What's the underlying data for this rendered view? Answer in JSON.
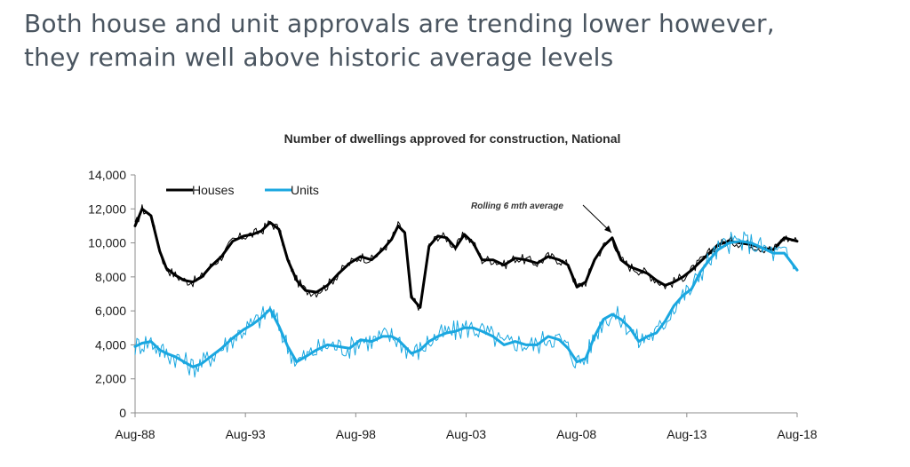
{
  "slide": {
    "title_line1": "Both house and unit approvals are trending lower however,",
    "title_line2": "they remain well above historic average levels"
  },
  "chart_data": {
    "type": "line",
    "title": "Number of dwellings approved for construction, National",
    "xlabel": "",
    "ylabel": "",
    "ylim": [
      0,
      14000
    ],
    "y_ticks": [
      "0",
      "2,000",
      "4,000",
      "6,000",
      "8,000",
      "10,000",
      "12,000",
      "14,000"
    ],
    "y_tick_values": [
      0,
      2000,
      4000,
      6000,
      8000,
      10000,
      12000,
      14000
    ],
    "x_range": [
      1988.58,
      2018.58
    ],
    "x_ticks": [
      "Aug-88",
      "Aug-93",
      "Aug-98",
      "Aug-03",
      "Aug-08",
      "Aug-13",
      "Aug-18"
    ],
    "x_tick_values": [
      1988.58,
      1993.58,
      1998.58,
      2003.58,
      2008.58,
      2013.58,
      2018.58
    ],
    "legend": [
      "Houses",
      "Units"
    ],
    "legend_position": "top-left",
    "annotation": "Rolling 6 mth average",
    "colors": {
      "houses": "#000000",
      "units": "#1aa7e0"
    },
    "series": [
      {
        "name": "Houses",
        "x": [
          1988.58,
          1988.9,
          1989.3,
          1989.7,
          1990.0,
          1990.4,
          1990.8,
          1991.2,
          1991.6,
          1992.0,
          1992.5,
          1993.0,
          1993.5,
          1993.9,
          1994.3,
          1994.7,
          1995.1,
          1995.5,
          1995.9,
          1996.3,
          1996.8,
          1997.3,
          1997.8,
          1998.3,
          1998.8,
          1999.3,
          1999.8,
          2000.2,
          2000.5,
          2000.8,
          2001.1,
          2001.5,
          2001.9,
          2002.3,
          2002.7,
          2003.1,
          2003.5,
          2003.9,
          2004.3,
          2004.8,
          2005.3,
          2005.8,
          2006.3,
          2006.8,
          2007.3,
          2007.8,
          2008.2,
          2008.6,
          2009.0,
          2009.4,
          2009.8,
          2010.2,
          2010.6,
          2011.0,
          2011.4,
          2011.8,
          2012.2,
          2012.6,
          2013.0,
          2013.4,
          2013.8,
          2014.2,
          2014.6,
          2015.0,
          2015.5,
          2016.0,
          2016.5,
          2017.0,
          2017.5,
          2018.0,
          2018.58
        ],
        "values": [
          11000,
          12000,
          11600,
          9500,
          8500,
          8100,
          7800,
          7700,
          8000,
          8600,
          9200,
          10100,
          10400,
          10500,
          10700,
          11200,
          10800,
          9000,
          7800,
          7200,
          7100,
          7500,
          8200,
          8800,
          9200,
          9000,
          9600,
          10200,
          11000,
          10600,
          6800,
          6200,
          9800,
          10400,
          10300,
          9700,
          10500,
          10000,
          9000,
          9000,
          8700,
          9100,
          9000,
          8800,
          9200,
          9000,
          8700,
          7400,
          7700,
          9000,
          9800,
          10300,
          9000,
          8600,
          8400,
          8200,
          7800,
          7500,
          7700,
          8000,
          8400,
          8900,
          9400,
          9900,
          10100,
          10000,
          9900,
          9700,
          9600,
          10300,
          10100
        ]
      },
      {
        "name": "Units",
        "x": [
          1988.58,
          1988.9,
          1989.3,
          1989.7,
          1990.0,
          1990.4,
          1990.8,
          1991.2,
          1991.6,
          1992.0,
          1992.5,
          1993.0,
          1993.5,
          1993.9,
          1994.3,
          1994.7,
          1995.1,
          1995.5,
          1995.9,
          1996.3,
          1996.8,
          1997.3,
          1997.8,
          1998.3,
          1998.8,
          1999.3,
          1999.8,
          2000.2,
          2000.5,
          2000.8,
          2001.1,
          2001.5,
          2001.9,
          2002.3,
          2002.7,
          2003.1,
          2003.5,
          2003.9,
          2004.3,
          2004.8,
          2005.3,
          2005.8,
          2006.3,
          2006.8,
          2007.3,
          2007.8,
          2008.2,
          2008.6,
          2009.0,
          2009.4,
          2009.8,
          2010.2,
          2010.6,
          2011.0,
          2011.4,
          2011.8,
          2012.2,
          2012.6,
          2013.0,
          2013.4,
          2013.8,
          2014.2,
          2014.6,
          2015.0,
          2015.5,
          2016.0,
          2016.5,
          2017.0,
          2017.5,
          2018.0,
          2018.58
        ],
        "values": [
          3900,
          4100,
          4200,
          3700,
          3500,
          3300,
          3000,
          2700,
          2900,
          3300,
          3800,
          4400,
          4900,
          5200,
          5600,
          6100,
          5100,
          3900,
          3000,
          3300,
          3700,
          4000,
          3900,
          3800,
          4300,
          4200,
          4500,
          4500,
          4300,
          3900,
          3500,
          3700,
          4200,
          4500,
          4700,
          4800,
          5000,
          5000,
          4800,
          4500,
          4000,
          4200,
          4000,
          4000,
          4500,
          4300,
          3800,
          3000,
          3200,
          4500,
          5500,
          5800,
          5500,
          5000,
          4200,
          4500,
          4700,
          5400,
          6300,
          6900,
          7300,
          8300,
          9000,
          9600,
          10000,
          10100,
          10000,
          9700,
          9400,
          9400,
          8400
        ]
      }
    ]
  }
}
